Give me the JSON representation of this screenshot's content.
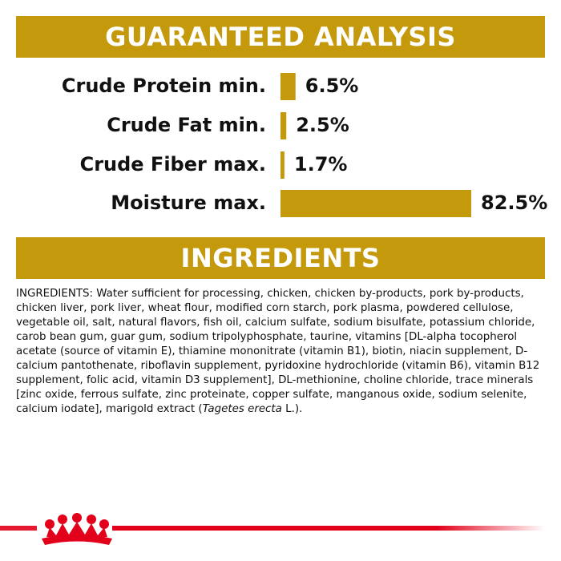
{
  "chart_data": {
    "type": "bar",
    "orientation": "horizontal",
    "title": "GUARANTEED ANALYSIS",
    "categories": [
      "Crude Protein min.",
      "Crude Fat min.",
      "Crude Fiber max.",
      "Moisture max."
    ],
    "values": [
      6.5,
      2.5,
      1.7,
      82.5
    ],
    "value_labels": [
      "6.5%",
      "2.5%",
      "1.7%",
      "82.5%"
    ],
    "color": "#c49a0c"
  },
  "ingredients": {
    "title": "INGREDIENTS",
    "text": "INGREDIENTS: Water sufficient for processing, chicken, chicken by-products, pork by-products, chicken liver, pork liver, wheat flour, modified corn starch, pork plasma, powdered cellulose, vegetable oil, salt, natural flavors, fish oil, calcium sulfate, sodium bisulfate, potassium chloride, carob bean gum, guar gum, sodium tripolyphosphate, taurine, vitamins [DL-alpha tocopherol acetate (source of vitamin E), thiamine mononitrate (vitamin B1), biotin, niacin supplement, D-calcium pantothenate, riboflavin supplement, pyridoxine hydrochloride (vitamin B6), vitamin B12 supplement, folic acid, vitamin D3 supplement], DL-methionine, choline chloride, trace minerals [zinc oxide, ferrous sulfate, zinc proteinate, copper sulfate, manganous oxide, sodium selenite, calcium iodate], marigold extract (",
    "italic": "Tagetes erecta",
    "end": " L.)."
  }
}
